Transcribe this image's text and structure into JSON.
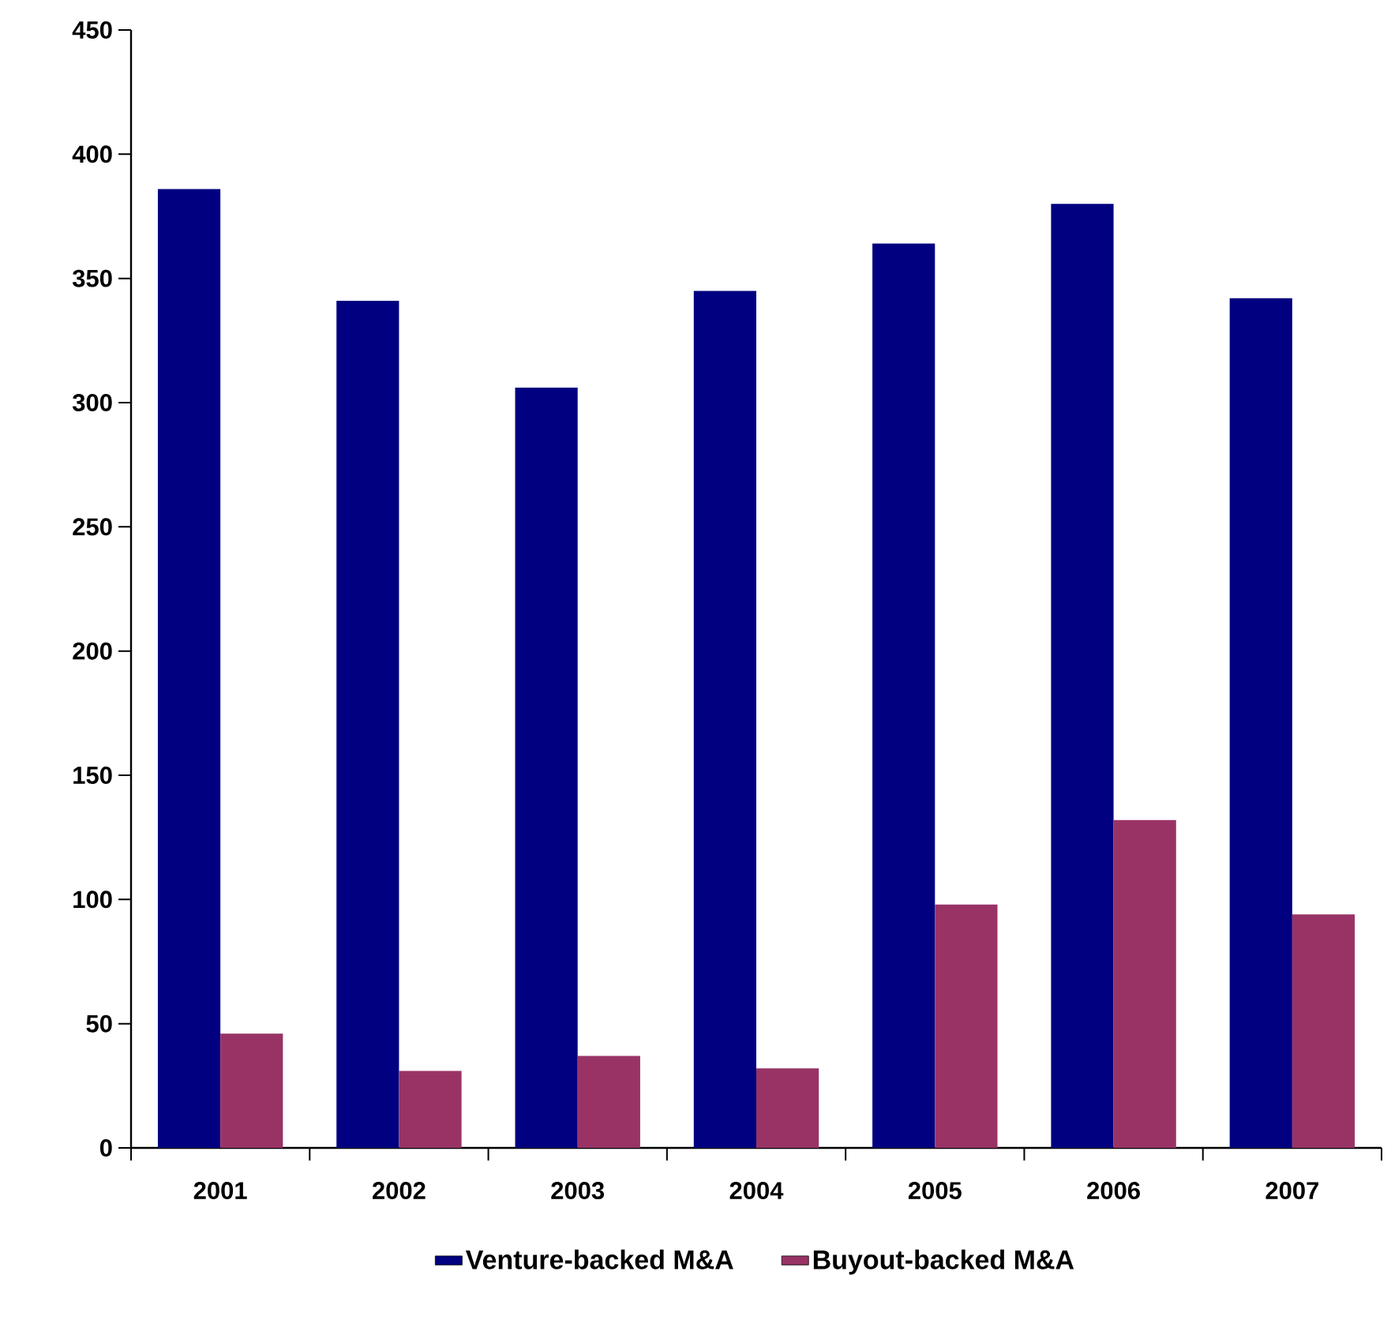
{
  "chart_data": {
    "type": "bar",
    "categories": [
      "2001",
      "2002",
      "2003",
      "2004",
      "2005",
      "2006",
      "2007"
    ],
    "series": [
      {
        "name": "Venture-backed M&A",
        "color": "#000080",
        "values": [
          386,
          341,
          306,
          345,
          364,
          380,
          342
        ]
      },
      {
        "name": "Buyout-backed M&A",
        "color": "#993366",
        "values": [
          46,
          31,
          37,
          32,
          98,
          132,
          94
        ]
      }
    ],
    "ylim": [
      0,
      450
    ],
    "yticks": [
      0,
      50,
      100,
      150,
      200,
      250,
      300,
      350,
      400,
      450
    ],
    "grid": false,
    "legend": "bottom"
  }
}
